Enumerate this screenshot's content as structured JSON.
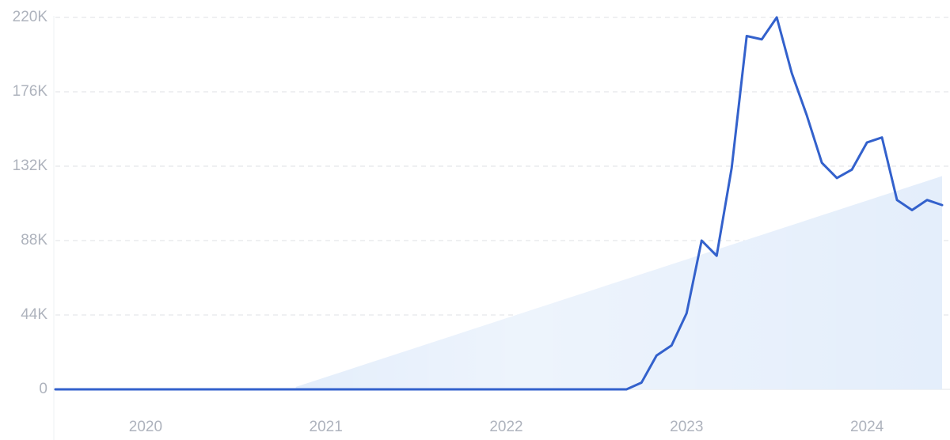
{
  "chart_data": {
    "type": "line",
    "categories": [
      null,
      null,
      null,
      null,
      null,
      null,
      "2020",
      null,
      null,
      null,
      null,
      null,
      null,
      null,
      null,
      null,
      null,
      null,
      "2021",
      null,
      null,
      null,
      null,
      null,
      null,
      null,
      null,
      null,
      null,
      null,
      "2022",
      null,
      null,
      null,
      null,
      null,
      null,
      null,
      null,
      null,
      null,
      null,
      "2023",
      null,
      null,
      null,
      null,
      null,
      null,
      null,
      null,
      null,
      null,
      null,
      "2024",
      null,
      null,
      null,
      null,
      null
    ],
    "series": [
      {
        "color": "#3361cc",
        "values": [
          0,
          0,
          0,
          0,
          0,
          0,
          0,
          0,
          0,
          0,
          0,
          0,
          0,
          0,
          0,
          0,
          0,
          0,
          0,
          0,
          0,
          0,
          0,
          0,
          0,
          0,
          0,
          0,
          0,
          0,
          0,
          0,
          0,
          0,
          0,
          0,
          0,
          0,
          0,
          4000,
          20000,
          26000,
          45000,
          88000,
          79000,
          131000,
          209000,
          207000,
          220000,
          187000,
          162000,
          134000,
          125000,
          130000,
          146000,
          149000,
          112000,
          106000,
          112000,
          109000
        ]
      }
    ],
    "trend": {
      "color": "#e4eefb",
      "values": [
        null,
        null,
        null,
        null,
        null,
        null,
        null,
        null,
        null,
        null,
        null,
        null,
        null,
        null,
        null,
        null,
        1450,
        4350,
        7250,
        10150,
        13050,
        15950,
        18850,
        21750,
        24650,
        27550,
        30450,
        33350,
        36250,
        39150,
        42050,
        44950,
        47850,
        50750,
        53650,
        56550,
        59450,
        62350,
        65250,
        68150,
        71050,
        73950,
        76850,
        79750,
        82650,
        85550,
        88450,
        91350,
        94250,
        97150,
        100050,
        102950,
        105850,
        108750,
        111650,
        114550,
        117450,
        120350,
        123250,
        126150
      ]
    },
    "ylim": [
      0,
      220000
    ],
    "yticks": [
      0,
      {
        "value": 44000,
        "label": "44K"
      },
      {
        "value": 88000,
        "label": "88K"
      },
      {
        "value": 132000,
        "label": "132K"
      },
      {
        "value": 176000,
        "label": "176K"
      },
      {
        "value": 220000,
        "label": "220K"
      }
    ],
    "grid": true,
    "legend": false
  }
}
